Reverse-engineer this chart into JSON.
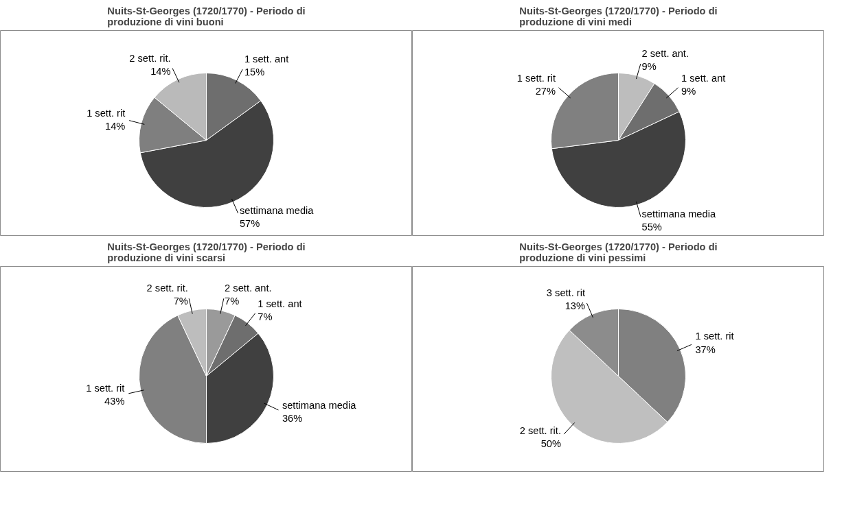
{
  "chart_data": [
    {
      "type": "pie",
      "title": "Nuits-St-Georges (1720/1770) - Periodo di produzione di vini buoni",
      "categories": [
        "1 sett. ant",
        "settimana media",
        "1 sett. rit",
        "2 sett. rit."
      ],
      "values": [
        15,
        57,
        14,
        14
      ],
      "value_labels": [
        "15%",
        "57%",
        "14%",
        "14%"
      ],
      "colors": [
        "#6e6e6e",
        "#404040",
        "#7f7f7f",
        "#bababa"
      ],
      "legend": false
    },
    {
      "type": "pie",
      "title": "Nuits-St-Georges (1720/1770) - Periodo di produzione di vini medi",
      "categories": [
        "2 sett. ant.",
        "1 sett. ant",
        "settimana media",
        "1 sett. rit"
      ],
      "values": [
        9,
        9,
        55,
        27
      ],
      "value_labels": [
        "9%",
        "9%",
        "55%",
        "27%"
      ],
      "colors": [
        "#bdbdbd",
        "#6e6e6e",
        "#404040",
        "#808080"
      ],
      "legend": false
    },
    {
      "type": "pie",
      "title": "Nuits-St-Georges (1720/1770) - Periodo di produzione di vini scarsi",
      "categories": [
        "2 sett. ant.",
        "1 sett. ant",
        "settimana media",
        "1 sett. rit",
        "2 sett. rit."
      ],
      "values": [
        7,
        7,
        36,
        43,
        7
      ],
      "value_labels": [
        "7%",
        "7%",
        "36%",
        "43%",
        "7%"
      ],
      "colors": [
        "#9a9a9a",
        "#6e6e6e",
        "#404040",
        "#808080",
        "#bdbdbd"
      ],
      "legend": false
    },
    {
      "type": "pie",
      "title": "Nuits-St-Georges (1720/1770) - Periodo di produzione di vini pessimi",
      "categories": [
        "1 sett. rit",
        "2 sett. rit.",
        "3 sett. rit"
      ],
      "values": [
        37,
        50,
        13
      ],
      "value_labels": [
        "37%",
        "50%",
        "13%"
      ],
      "colors": [
        "#808080",
        "#bfbfbf",
        "#8c8c8c"
      ],
      "legend": false
    }
  ]
}
